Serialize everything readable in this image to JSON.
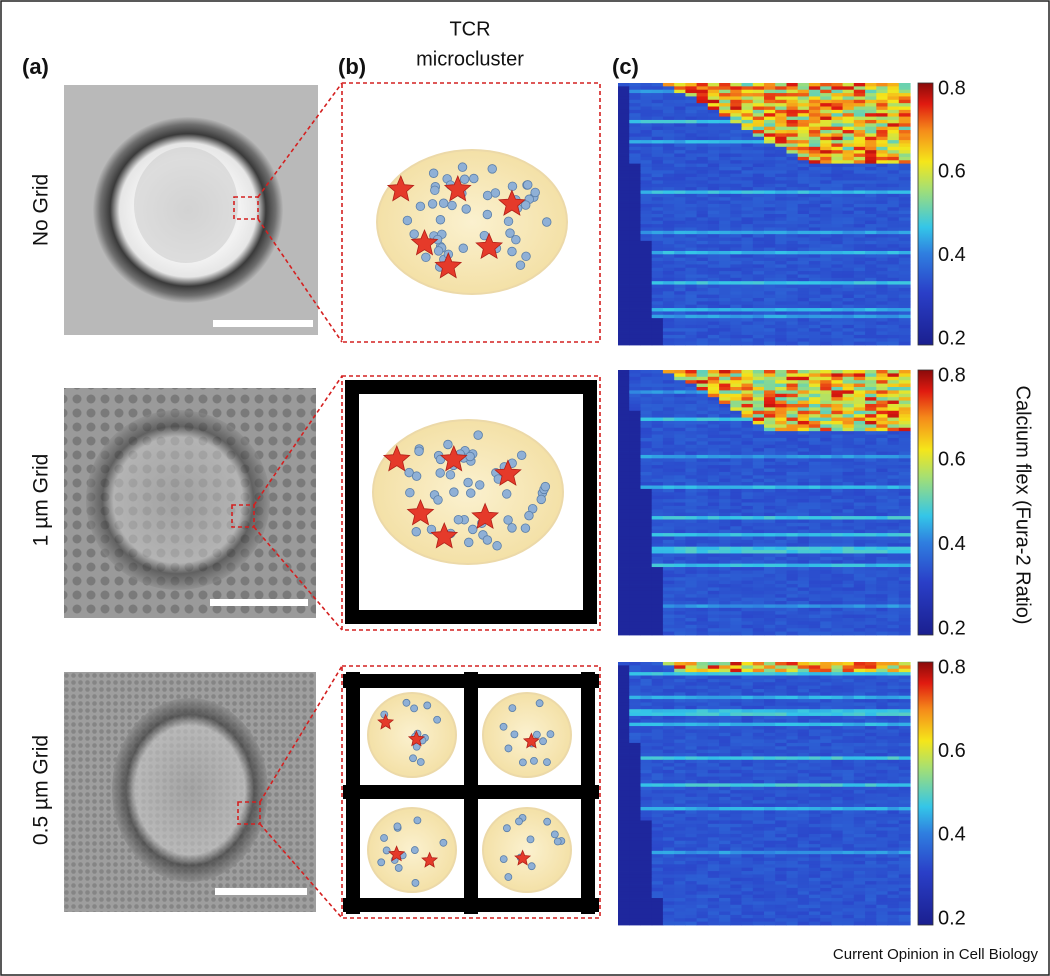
{
  "panel_labels": [
    "(a)",
    "(b)",
    "(c)"
  ],
  "schematic_header": [
    "TCR",
    "microcluster"
  ],
  "rows": [
    {
      "label": "No Grid",
      "colorbar_ticks": [
        0.8,
        0.6,
        0.4,
        0.2
      ]
    },
    {
      "label": "1 µm Grid",
      "colorbar_ticks": [
        0.8,
        0.6,
        0.4,
        0.2
      ]
    },
    {
      "label": "0.5 µm Grid",
      "colorbar_ticks": [
        0.8,
        0.6,
        0.4,
        0.2
      ]
    }
  ],
  "colorbar_label": "Calcium flex (Fura-2 Ratio)",
  "source": "Current Opinion in Cell Biology"
}
